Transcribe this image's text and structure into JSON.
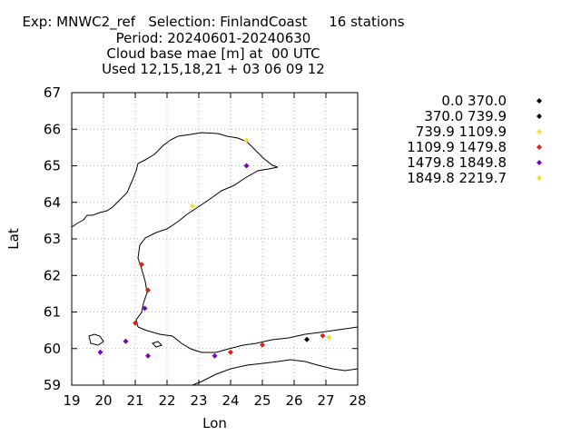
{
  "title": {
    "line1": "Exp: MNWC2_ref   Selection: FinlandCoast     16 stations",
    "line2": "Period: 20240601-20240630",
    "line3": "Cloud base mae [m] at  00 UTC",
    "line4": "Used 12,15,18,21 + 03 06 09 12"
  },
  "chart_data": {
    "type": "scatter",
    "title": "Cloud base mae [m] at  00 UTC",
    "xlabel": "Lon",
    "ylabel": "Lat",
    "xlim": [
      19,
      28
    ],
    "ylim": [
      59,
      67
    ],
    "xticks": [
      19,
      20,
      21,
      22,
      23,
      24,
      25,
      26,
      27,
      28
    ],
    "yticks": [
      59,
      60,
      61,
      62,
      63,
      64,
      65,
      66,
      67
    ],
    "grid": true,
    "legend_position": "right",
    "classes": [
      {
        "label": "0.0 370.0",
        "color": "#000000"
      },
      {
        "label": "370.0 739.9",
        "color": "#000000"
      },
      {
        "label": "739.9 1109.9",
        "color": "#f0e030"
      },
      {
        "label": "1109.9 1479.8",
        "color": "#e02010"
      },
      {
        "label": "1479.8 1849.8",
        "color": "#8000c0"
      },
      {
        "label": "1849.8 2219.7",
        "color": "#f0e030"
      }
    ],
    "points": [
      {
        "lon": 24.5,
        "lat": 65.7,
        "class": 2
      },
      {
        "lon": 24.5,
        "lat": 65.0,
        "class": 4
      },
      {
        "lon": 22.8,
        "lat": 63.9,
        "class": 2
      },
      {
        "lon": 21.2,
        "lat": 62.3,
        "class": 3
      },
      {
        "lon": 21.4,
        "lat": 61.6,
        "class": 3
      },
      {
        "lon": 21.3,
        "lat": 61.1,
        "class": 4
      },
      {
        "lon": 21.0,
        "lat": 60.7,
        "class": 3
      },
      {
        "lon": 20.7,
        "lat": 60.2,
        "class": 4
      },
      {
        "lon": 19.9,
        "lat": 59.9,
        "class": 4
      },
      {
        "lon": 21.4,
        "lat": 59.8,
        "class": 4
      },
      {
        "lon": 23.5,
        "lat": 59.8,
        "class": 4
      },
      {
        "lon": 24.0,
        "lat": 59.9,
        "class": 3
      },
      {
        "lon": 25.0,
        "lat": 60.1,
        "class": 3
      },
      {
        "lon": 26.4,
        "lat": 60.25,
        "class": 1
      },
      {
        "lon": 26.9,
        "lat": 60.35,
        "class": 3
      },
      {
        "lon": 27.1,
        "lat": 60.3,
        "class": 5
      }
    ]
  }
}
